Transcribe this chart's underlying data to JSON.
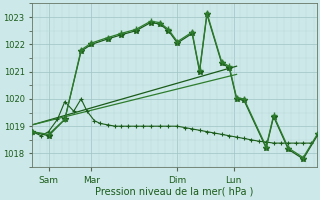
{
  "xlabel": "Pression niveau de la mer( hPa )",
  "bg_color": "#cde8e8",
  "grid_color_major": "#a0c4c4",
  "grid_color_minor": "#b8d8d8",
  "line_dark": "#1a5c1a",
  "line_mid": "#2e7d2e",
  "ylim": [
    1017.5,
    1023.5
  ],
  "yticks": [
    1018,
    1019,
    1020,
    1021,
    1022,
    1023
  ],
  "xlim": [
    0,
    9.6
  ],
  "xtick_positions": [
    0.55,
    2.0,
    4.9,
    6.8
  ],
  "xtick_labels": [
    "Sam",
    "Mar",
    "Dim",
    "Lun"
  ],
  "series_A_x": [
    0.0,
    0.3,
    0.55,
    0.85,
    1.1,
    1.4,
    1.65,
    1.85,
    2.1,
    2.3,
    2.55,
    2.8,
    3.0,
    3.25,
    3.5,
    3.75,
    4.0,
    4.3,
    4.6,
    4.9,
    5.15,
    5.4,
    5.65,
    5.9,
    6.15,
    6.4,
    6.65,
    6.9,
    7.15,
    7.4,
    7.65,
    7.9,
    8.15,
    8.4,
    8.65,
    8.9,
    9.15,
    9.4
  ],
  "series_A_y": [
    1018.8,
    1018.65,
    1018.8,
    1019.25,
    1019.9,
    1019.55,
    1020.0,
    1019.55,
    1019.2,
    1019.1,
    1019.05,
    1019.0,
    1019.0,
    1019.0,
    1019.0,
    1019.0,
    1019.0,
    1019.0,
    1019.0,
    1019.0,
    1018.95,
    1018.9,
    1018.85,
    1018.8,
    1018.75,
    1018.7,
    1018.65,
    1018.6,
    1018.55,
    1018.5,
    1018.45,
    1018.42,
    1018.38,
    1018.38,
    1018.38,
    1018.38,
    1018.38,
    1018.38
  ],
  "series_B_x": [
    0.0,
    0.55,
    1.1,
    1.65,
    2.0,
    2.55,
    3.0,
    3.5,
    4.0,
    4.3,
    4.6,
    4.9,
    5.4,
    5.65,
    5.9,
    6.4,
    6.65,
    6.9,
    7.15,
    7.9,
    8.15,
    8.65,
    9.15,
    9.65
  ],
  "series_B_y": [
    1018.8,
    1018.65,
    1019.25,
    1021.75,
    1022.0,
    1022.2,
    1022.35,
    1022.5,
    1022.8,
    1022.75,
    1022.5,
    1022.05,
    1022.4,
    1021.0,
    1023.1,
    1021.3,
    1021.15,
    1020.0,
    1019.95,
    1018.2,
    1019.35,
    1018.15,
    1017.8,
    1018.7
  ],
  "series_C_x": [
    0.0,
    0.55,
    1.1,
    1.65,
    2.0,
    2.55,
    3.0,
    3.5,
    4.0,
    4.3,
    4.6,
    4.9,
    5.4,
    5.65,
    5.9,
    6.4,
    6.65,
    6.9,
    7.15,
    7.9,
    8.15,
    8.65,
    9.15,
    9.65
  ],
  "series_C_y": [
    1018.8,
    1018.7,
    1019.25,
    1021.8,
    1022.05,
    1022.25,
    1022.4,
    1022.55,
    1022.85,
    1022.8,
    1022.55,
    1022.1,
    1022.45,
    1021.05,
    1023.15,
    1021.35,
    1021.2,
    1020.05,
    1020.0,
    1018.25,
    1019.4,
    1018.2,
    1017.85,
    1018.75
  ],
  "trend1_x": [
    0.0,
    6.9
  ],
  "trend1_y": [
    1019.05,
    1021.2
  ],
  "trend2_x": [
    0.0,
    6.9
  ],
  "trend2_y": [
    1019.05,
    1020.9
  ]
}
